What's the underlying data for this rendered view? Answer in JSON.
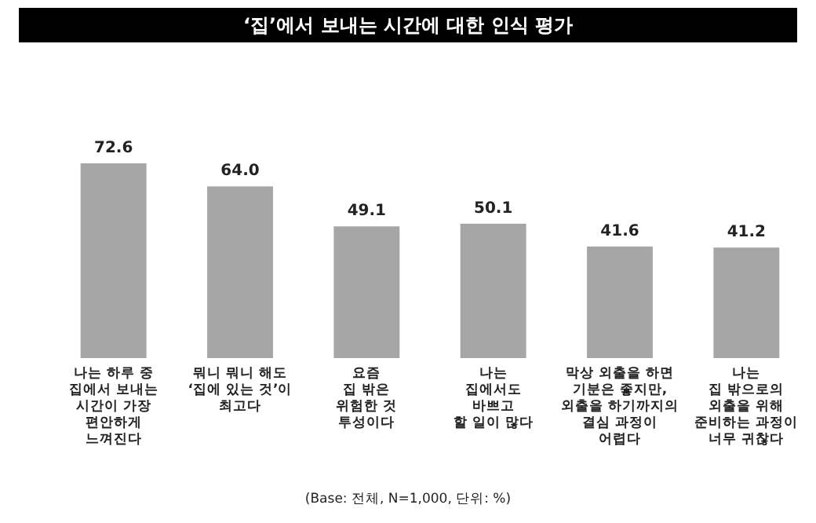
{
  "chart_data": {
    "type": "bar",
    "title": "‘집’에서 보내는 시간에 대한 인식 평가",
    "categories": [
      "나는 하루 중\n집에서 보내는\n시간이 가장\n편안하게\n느껴진다",
      "뭐니 뭐니 해도\n‘집에 있는 것’이\n최고다",
      "요즘\n집 밖은\n위험한 것\n투성이다",
      "나는\n집에서도\n바쁘고\n할 일이 많다",
      "막상 외출을 하면\n기분은 좋지만,\n외출을 하기까지의\n결심 과정이\n어렵다",
      "나는\n집 밖으로의\n외출을 위해\n준비하는 과정이\n너무 귀찮다"
    ],
    "values": [
      72.6,
      64.0,
      49.1,
      50.1,
      41.6,
      41.2
    ],
    "value_labels": [
      "72.6",
      "64.0",
      "49.1",
      "50.1",
      "41.6",
      "41.2"
    ],
    "color": "#a6a6a6",
    "annotations": [
      "(Base: 전체, N=1,000, 단위: %)"
    ]
  }
}
